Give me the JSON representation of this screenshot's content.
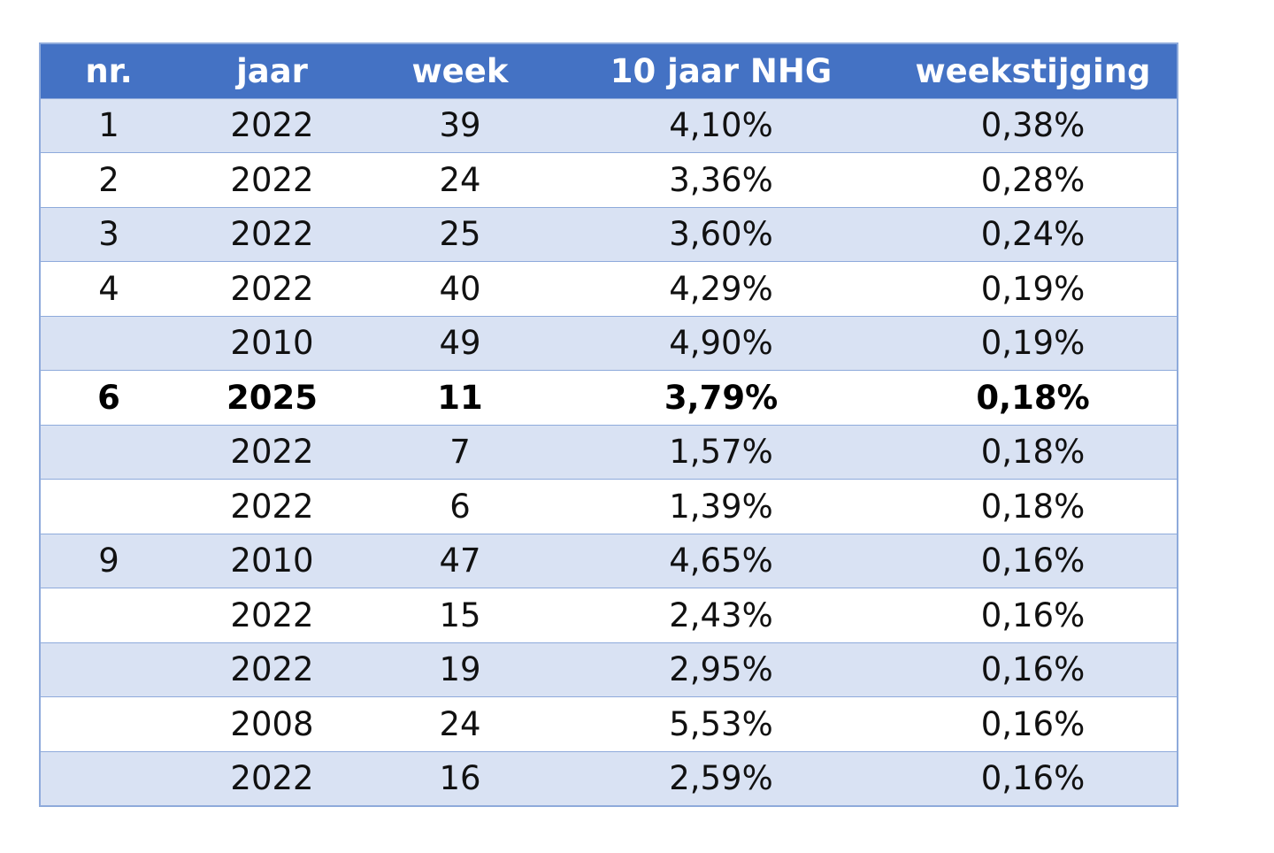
{
  "table": {
    "headers": [
      "nr.",
      "jaar",
      "week",
      "10 jaar NHG",
      "weekstijging"
    ],
    "rows": [
      {
        "nr": "1",
        "jaar": "2022",
        "week": "39",
        "nhg": "4,10%",
        "stijging": "0,38%",
        "bold": false
      },
      {
        "nr": "2",
        "jaar": "2022",
        "week": "24",
        "nhg": "3,36%",
        "stijging": "0,28%",
        "bold": false
      },
      {
        "nr": "3",
        "jaar": "2022",
        "week": "25",
        "nhg": "3,60%",
        "stijging": "0,24%",
        "bold": false
      },
      {
        "nr": "4",
        "jaar": "2022",
        "week": "40",
        "nhg": "4,29%",
        "stijging": "0,19%",
        "bold": false
      },
      {
        "nr": "",
        "jaar": "2010",
        "week": "49",
        "nhg": "4,90%",
        "stijging": "0,19%",
        "bold": false
      },
      {
        "nr": "6",
        "jaar": "2025",
        "week": "11",
        "nhg": "3,79%",
        "stijging": "0,18%",
        "bold": true
      },
      {
        "nr": "",
        "jaar": "2022",
        "week": "7",
        "nhg": "1,57%",
        "stijging": "0,18%",
        "bold": false
      },
      {
        "nr": "",
        "jaar": "2022",
        "week": "6",
        "nhg": "1,39%",
        "stijging": "0,18%",
        "bold": false
      },
      {
        "nr": "9",
        "jaar": "2010",
        "week": "47",
        "nhg": "4,65%",
        "stijging": "0,16%",
        "bold": false
      },
      {
        "nr": "",
        "jaar": "2022",
        "week": "15",
        "nhg": "2,43%",
        "stijging": "0,16%",
        "bold": false
      },
      {
        "nr": "",
        "jaar": "2022",
        "week": "19",
        "nhg": "2,95%",
        "stijging": "0,16%",
        "bold": false
      },
      {
        "nr": "",
        "jaar": "2008",
        "week": "24",
        "nhg": "5,53%",
        "stijging": "0,16%",
        "bold": false
      },
      {
        "nr": "",
        "jaar": "2022",
        "week": "16",
        "nhg": "2,59%",
        "stijging": "0,16%",
        "bold": false
      }
    ]
  },
  "colors": {
    "header_bg": "#4472c4",
    "header_text": "#ffffff",
    "band_row_bg": "#d9e2f3",
    "plain_row_bg": "#ffffff",
    "grid_line": "#8eaadb"
  }
}
